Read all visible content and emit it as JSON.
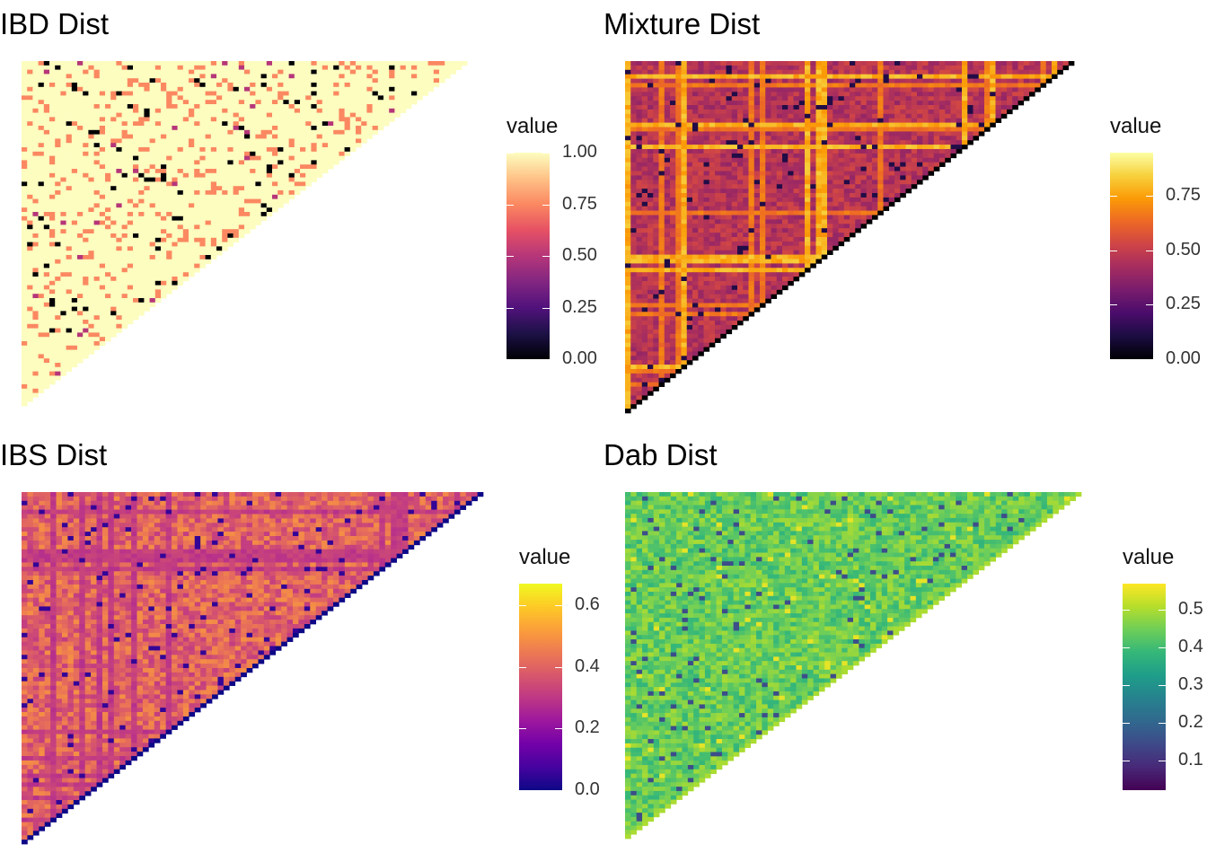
{
  "chart_data": [
    {
      "type": "heatmap",
      "title": "IBD Dist",
      "legend_title": "value",
      "n": 80,
      "value_range": [
        0,
        1
      ],
      "palette": "magma",
      "colors": [
        "#000004",
        "#1d1147",
        "#51127c",
        "#822681",
        "#b63679",
        "#e65164",
        "#fb8861",
        "#fec287",
        "#fcfdbf"
      ],
      "ticks": [
        "0.00",
        "0.25",
        "0.50",
        "0.75",
        "1.00"
      ],
      "tick_values": [
        0,
        0.25,
        0.5,
        0.75,
        1.0
      ],
      "matrix_note": "lower-triangular pairwise distances; mostly 1.00 with scattered 0.75 and 0.00 cells"
    },
    {
      "type": "heatmap",
      "title": "Mixture Dist",
      "legend_title": "value",
      "n": 80,
      "value_range": [
        0,
        0.95
      ],
      "palette": "inferno",
      "colors": [
        "#000004",
        "#1b0c41",
        "#4a0c6b",
        "#781c6d",
        "#a52c60",
        "#cf4446",
        "#ed6925",
        "#fb9b06",
        "#f7d13d",
        "#fcffa4"
      ],
      "ticks": [
        "0.00",
        "0.25",
        "0.50",
        "0.75"
      ],
      "tick_values": [
        0,
        0.25,
        0.5,
        0.75
      ],
      "matrix_note": "mostly 0.45-0.6 with bright orange row/column stripes"
    },
    {
      "type": "heatmap",
      "title": "IBS Dist",
      "legend_title": "value",
      "n": 80,
      "value_range": [
        0,
        0.67
      ],
      "palette": "plasma",
      "colors": [
        "#0d0887",
        "#46039f",
        "#7201a8",
        "#9c179e",
        "#bd3786",
        "#d8576b",
        "#ed7953",
        "#fb9f3a",
        "#fdca26",
        "#f0f921"
      ],
      "ticks": [
        "0.0",
        "0.2",
        "0.4",
        "0.6"
      ],
      "tick_values": [
        0,
        0.2,
        0.4,
        0.6
      ],
      "matrix_note": "values ~0.3-0.5 with a 0.0 diagonal"
    },
    {
      "type": "heatmap",
      "title": "Dab Dist",
      "legend_title": "value",
      "n": 80,
      "value_range": [
        0.02,
        0.57
      ],
      "palette": "viridis",
      "colors": [
        "#440154",
        "#482878",
        "#3e4989",
        "#31688e",
        "#26828e",
        "#1f9e89",
        "#35b779",
        "#6ece58",
        "#b5de2b",
        "#fde725"
      ],
      "ticks": [
        "0.1",
        "0.2",
        "0.3",
        "0.4",
        "0.5"
      ],
      "tick_values": [
        0.1,
        0.2,
        0.3,
        0.4,
        0.5
      ],
      "matrix_note": "values ~0.35-0.5 with scattered dark cells"
    }
  ]
}
